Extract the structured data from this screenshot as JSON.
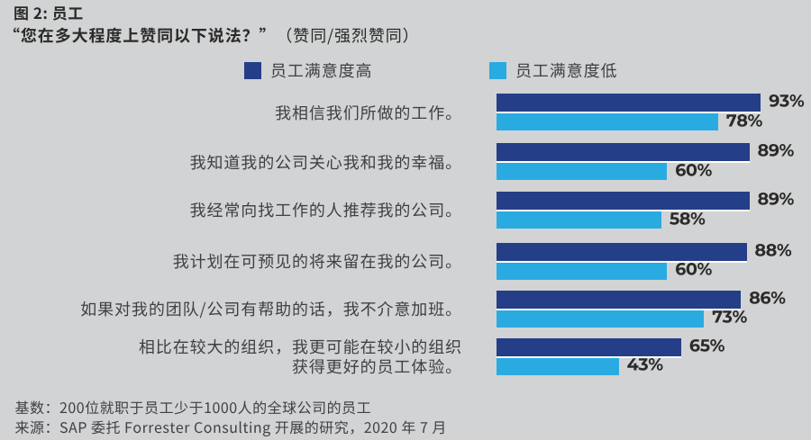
{
  "figure": {
    "title": "图 2: 员工",
    "subtitle_question": "“您在多大程度上赞同以下说法？”",
    "subtitle_note": "（赞同/强烈赞同）",
    "footnote_base": "基数：200位就职于员工少于1000人的全球公司的员工",
    "footnote_source": "来源：SAP 委托 Forrester Consulting 开展的研究，2020 年 7 月"
  },
  "colors": {
    "background": "#d1d3d4",
    "series_high": "#243e87",
    "series_low": "#29abe2",
    "bar_separator": "#ffffff",
    "text_dark": "#414042",
    "value_text": "#2b2a29"
  },
  "chart_data": {
    "type": "bar",
    "orientation": "horizontal",
    "unit": "%",
    "xlim": [
      0,
      100
    ],
    "grid": false,
    "legend_position": "top",
    "value_labels": "end-of-bar",
    "categories": [
      "我相信我们所做的工作。",
      "我知道我的公司关心我和我的幸福。",
      "我经常向找工作的人推荐我的公司。",
      "我计划在可预见的将来留在我的公司。",
      "如果对我的团队/公司有帮助的话，我不介意加班。",
      "相比在较大的组织，我更可能在较小的组织\n获得更好的员工体验。"
    ],
    "series": [
      {
        "name": "员工满意度高",
        "color": "#243e87",
        "values": [
          93,
          89,
          89,
          88,
          86,
          65
        ]
      },
      {
        "name": "员工满意度低",
        "color": "#29abe2",
        "values": [
          78,
          60,
          58,
          60,
          73,
          43
        ]
      }
    ]
  }
}
